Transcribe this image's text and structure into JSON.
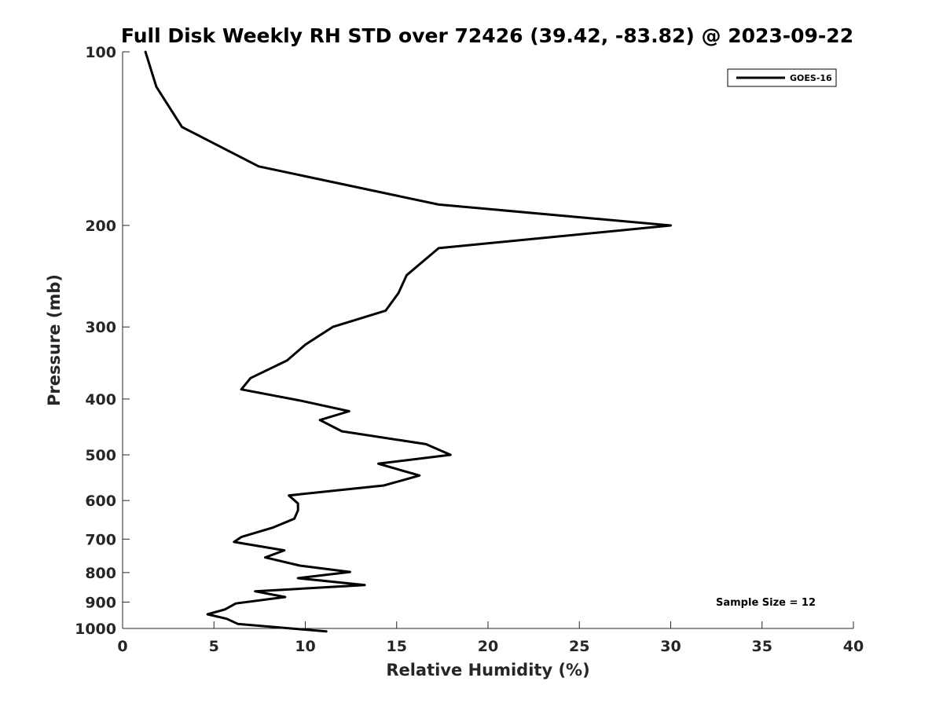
{
  "chart_data": {
    "type": "line",
    "title": "Full Disk Weekly RH STD over 72426 (39.42, -83.82) @ 2023-09-22",
    "xlabel": "Relative Humidity (%)",
    "ylabel": "Pressure (mb)",
    "xlim": [
      0,
      40
    ],
    "ylim": [
      100,
      1000
    ],
    "y_scale": "log",
    "y_reversed": true,
    "x_ticks": [
      0,
      5,
      10,
      15,
      20,
      25,
      30,
      35,
      40
    ],
    "y_ticks": [
      100,
      200,
      300,
      400,
      500,
      600,
      700,
      800,
      900,
      1000
    ],
    "grid": false,
    "legend": {
      "position": "top-right",
      "entries": [
        "GOES-16"
      ]
    },
    "annotation": "Sample Size = 12",
    "series": [
      {
        "name": "GOES-16",
        "color": "#000000",
        "x": [
          1.25,
          1.85,
          3.25,
          7.45,
          17.3,
          30.0,
          17.3,
          15.55,
          15.1,
          14.4,
          11.5,
          10.0,
          9.0,
          7.0,
          6.5,
          9.8,
          12.4,
          10.8,
          12.0,
          16.6,
          17.95,
          14.0,
          16.25,
          14.3,
          9.1,
          9.6,
          9.6,
          9.4,
          8.25,
          6.5,
          6.1,
          8.85,
          7.8,
          9.7,
          12.45,
          9.6,
          13.25,
          7.25,
          8.9,
          6.2,
          5.6,
          4.65,
          5.7,
          6.3,
          11.15
        ],
        "y": [
          100,
          115,
          135,
          158,
          184,
          200,
          219,
          244,
          262,
          281,
          300,
          322,
          343,
          368,
          385,
          403,
          420,
          435,
          455,
          479,
          500,
          518,
          543,
          565,
          588,
          607,
          624,
          645,
          668,
          694,
          708,
          732,
          753,
          778,
          798,
          818,
          841,
          862,
          882,
          905,
          927,
          945,
          962,
          982,
          1012
        ]
      }
    ]
  }
}
